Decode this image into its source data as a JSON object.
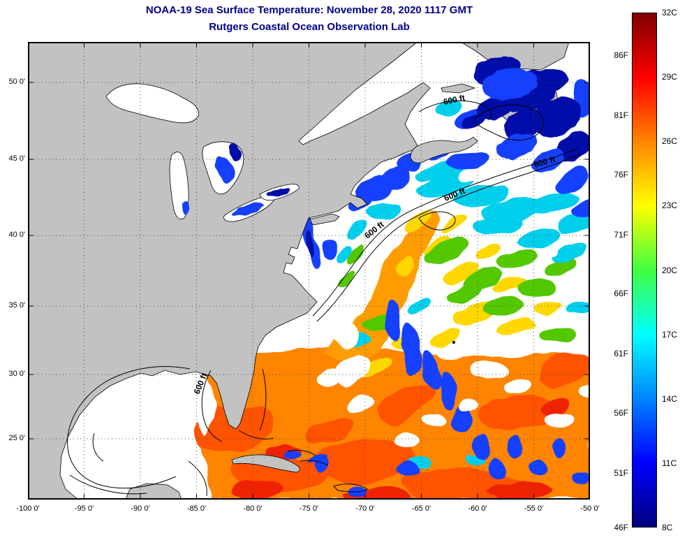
{
  "header": {
    "title": "NOAA-19 Sea Surface Temperature:  November 28, 2020 1117 GMT",
    "subtitle": "Rutgers Coastal Ocean Observation Lab"
  },
  "map": {
    "x_axis_labels": [
      "-100 0'",
      "-95 0'",
      "-90 0'",
      "-85 0'",
      "-80 0'",
      "-75 0'",
      "-70 0'",
      "-65 0'",
      "-60 0'",
      "-55 0'",
      "-50 0'"
    ],
    "y_axis_labels": [
      "50 0'",
      "45 0'",
      "40 0'",
      "35 0'",
      "30 0'",
      "25 0'"
    ],
    "contour_label": "600 ft",
    "colors": {
      "land": "#c2c2c2",
      "ocean_no_data": "#ffffff",
      "coastline": "#000000",
      "grid": "#4a4a4a",
      "title_text": "#00008b",
      "axis_text": "#000000"
    }
  },
  "colorbar": {
    "celsius_labels": [
      "32C",
      "29C",
      "26C",
      "23C",
      "20C",
      "17C",
      "14C",
      "11C",
      "8C"
    ],
    "fahrenheit_labels": [
      "86F",
      "81F",
      "76F",
      "71F",
      "66F",
      "61F",
      "56F",
      "51F",
      "46F"
    ],
    "gradient_top_to_bottom": [
      "#7f0000",
      "#ff0000",
      "#ff8400",
      "#ffff00",
      "#40ff40",
      "#00ffff",
      "#0084ff",
      "#0000ff",
      "#00007f"
    ]
  },
  "chart_data": {
    "type": "heatmap",
    "title": "NOAA-19 Sea Surface Temperature:  November 28, 2020 1117 GMT",
    "subtitle": "Rutgers Coastal Ocean Observation Lab",
    "colorbar_scale": {
      "celsius_ticks": [
        32,
        29,
        26,
        23,
        20,
        17,
        14,
        11,
        8
      ],
      "fahrenheit_ticks": [
        86,
        81,
        76,
        71,
        66,
        61,
        56,
        51,
        46
      ],
      "min_c": 8,
      "max_c": 32,
      "colormap": "jet"
    },
    "x_ticks_longitude_deg": [
      -100,
      -95,
      -90,
      -85,
      -80,
      -75,
      -70,
      -65,
      -60,
      -55,
      -50
    ],
    "y_ticks_latitude_deg": [
      50,
      45,
      40,
      35,
      30,
      25
    ],
    "bathymetry_contour": "600 ft",
    "grid": true,
    "legend_position": "right-colorbar"
  }
}
